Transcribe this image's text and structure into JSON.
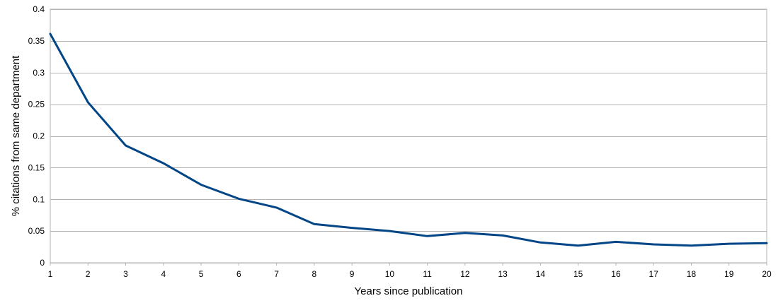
{
  "chart_data": {
    "type": "line",
    "title": "",
    "xlabel": "Years since publication",
    "ylabel": "% citations from same department",
    "x": [
      1,
      2,
      3,
      4,
      5,
      6,
      7,
      8,
      9,
      10,
      11,
      12,
      13,
      14,
      15,
      16,
      17,
      18,
      19,
      20
    ],
    "x_ticks": [
      "1",
      "2",
      "3",
      "4",
      "5",
      "6",
      "7",
      "8",
      "9",
      "10",
      "11",
      "12",
      "13",
      "14",
      "15",
      "16",
      "17",
      "18",
      "19",
      "20"
    ],
    "y_ticks": [
      "0",
      "0.05",
      "0.1",
      "0.15",
      "0.2",
      "0.25",
      "0.3",
      "0.35",
      "0.4"
    ],
    "ylim": [
      0,
      0.4
    ],
    "xlim": [
      1,
      20
    ],
    "grid": "horizontal",
    "legend": "none",
    "series": [
      {
        "values": [
          0.361,
          0.253,
          0.185,
          0.157,
          0.123,
          0.101,
          0.087,
          0.061,
          0.055,
          0.05,
          0.042,
          0.047,
          0.043,
          0.032,
          0.027,
          0.033,
          0.029,
          0.027,
          0.03,
          0.031
        ],
        "color": "#004586"
      }
    ],
    "colors": {
      "grid": "#b3b3b3",
      "text": "#000000",
      "background": "#ffffff"
    }
  }
}
